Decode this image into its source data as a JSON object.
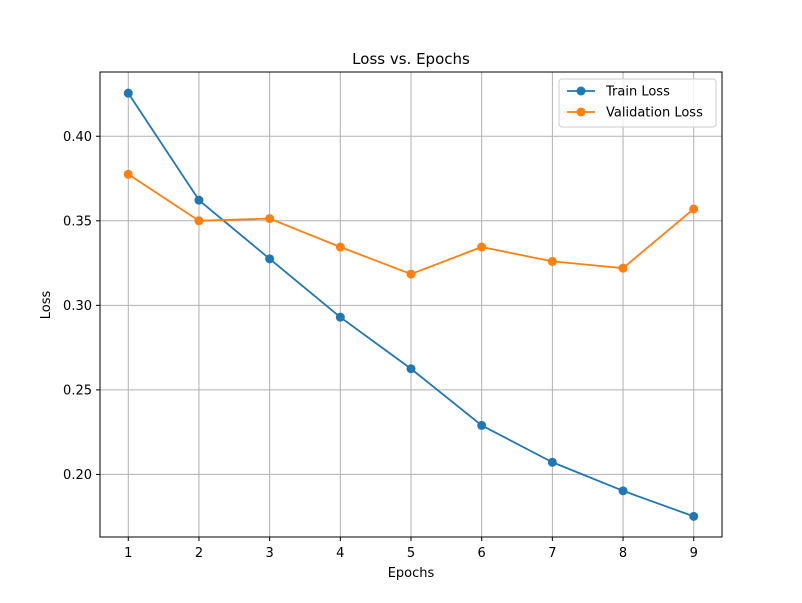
{
  "chart_data": {
    "type": "line",
    "title": "Loss vs. Epochs",
    "xlabel": "Epochs",
    "ylabel": "Loss",
    "x": [
      1,
      2,
      3,
      4,
      5,
      6,
      7,
      8,
      9
    ],
    "xlim": [
      0.6,
      9.4
    ],
    "ylim": [
      0.163,
      0.438
    ],
    "xticks": [
      "1",
      "2",
      "3",
      "4",
      "5",
      "6",
      "7",
      "8",
      "9"
    ],
    "yticks": [
      "0.20",
      "0.25",
      "0.30",
      "0.35",
      "0.40"
    ],
    "ytick_values": [
      0.2,
      0.25,
      0.3,
      0.35,
      0.4
    ],
    "grid": true,
    "legend_position": "top-right",
    "series": [
      {
        "name": "Train Loss",
        "color": "#1f77b4",
        "marker": "circle",
        "values": [
          0.4255,
          0.3622,
          0.3275,
          0.293,
          0.2625,
          0.229,
          0.2072,
          0.1903,
          0.1752
        ]
      },
      {
        "name": "Validation Loss",
        "color": "#ff7f0e",
        "marker": "circle",
        "values": [
          0.3775,
          0.35,
          0.3513,
          0.3345,
          0.3185,
          0.3345,
          0.326,
          0.322,
          0.357
        ]
      }
    ]
  }
}
